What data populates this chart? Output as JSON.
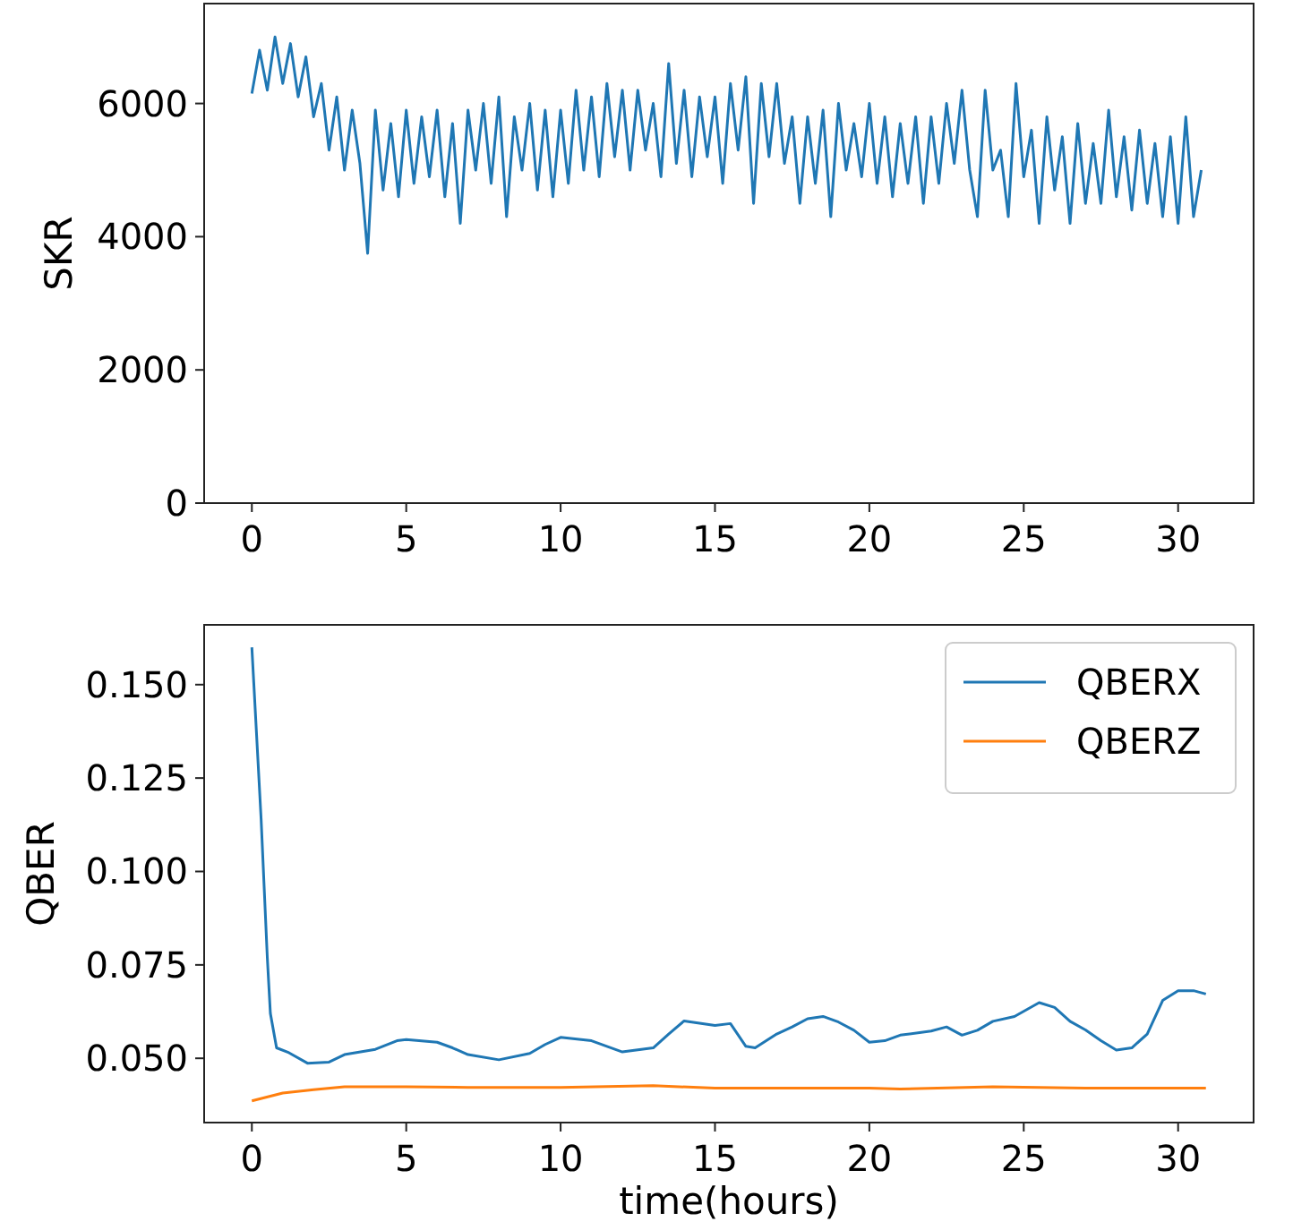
{
  "chart_data": [
    {
      "type": "line",
      "ylabel": "SKR",
      "xlim": [
        -1.545,
        32.445
      ],
      "xticks": [
        0,
        5,
        10,
        15,
        20,
        25,
        30
      ],
      "ylim": [
        0,
        7500
      ],
      "yticks": [
        0,
        2000,
        4000,
        6000
      ],
      "x": [
        0,
        0.25,
        0.5,
        0.75,
        1,
        1.25,
        1.5,
        1.75,
        2,
        2.25,
        2.5,
        2.75,
        3,
        3.25,
        3.5,
        3.75,
        4,
        4.25,
        4.5,
        4.75,
        5,
        5.25,
        5.5,
        5.75,
        6,
        6.25,
        6.5,
        6.75,
        7,
        7.25,
        7.5,
        7.75,
        8,
        8.25,
        8.5,
        8.75,
        9,
        9.25,
        9.5,
        9.75,
        10,
        10.25,
        10.5,
        10.75,
        11,
        11.25,
        11.5,
        11.75,
        12,
        12.25,
        12.5,
        12.75,
        13,
        13.25,
        13.5,
        13.75,
        14,
        14.25,
        14.5,
        14.75,
        15,
        15.25,
        15.5,
        15.75,
        16,
        16.25,
        16.5,
        16.75,
        17,
        17.25,
        17.5,
        17.75,
        18,
        18.25,
        18.5,
        18.75,
        19,
        19.25,
        19.5,
        19.75,
        20,
        20.25,
        20.5,
        20.75,
        21,
        21.25,
        21.5,
        21.75,
        22,
        22.25,
        22.5,
        22.75,
        23,
        23.25,
        23.5,
        23.75,
        24,
        24.25,
        24.5,
        24.75,
        25,
        25.25,
        25.5,
        25.75,
        26,
        26.25,
        26.5,
        26.75,
        27,
        27.25,
        27.5,
        27.75,
        28,
        28.25,
        28.5,
        28.75,
        29,
        29.25,
        29.5,
        29.75,
        30,
        30.25,
        30.5,
        30.75
      ],
      "series": [
        {
          "color": "#1f77b4",
          "values": [
            6150,
            6800,
            6200,
            7000,
            6300,
            6900,
            6100,
            6700,
            5800,
            6300,
            5300,
            6100,
            5000,
            5900,
            5100,
            3750,
            5900,
            4700,
            5700,
            4600,
            5900,
            4800,
            5800,
            4900,
            5900,
            4600,
            5700,
            4200,
            5900,
            5000,
            6000,
            4800,
            6100,
            4300,
            5800,
            5000,
            6000,
            4700,
            5900,
            4600,
            5900,
            4800,
            6200,
            5000,
            6100,
            4900,
            6300,
            5200,
            6200,
            5000,
            6200,
            5300,
            6000,
            4900,
            6600,
            5100,
            6200,
            4900,
            6100,
            5200,
            6100,
            4800,
            6300,
            5300,
            6400,
            4500,
            6300,
            5200,
            6300,
            5100,
            5800,
            4500,
            5800,
            4800,
            5900,
            4300,
            6000,
            5000,
            5700,
            4900,
            6000,
            4800,
            5800,
            4600,
            5700,
            4800,
            5800,
            4500,
            5800,
            4800,
            6000,
            5100,
            6200,
            5000,
            4300,
            6200,
            5000,
            5300,
            4300,
            6300,
            4900,
            5600,
            4200,
            5800,
            4700,
            5500,
            4200,
            5700,
            4500,
            5400,
            4500,
            5900,
            4600,
            5500,
            4400,
            5600,
            4500,
            5400,
            4300,
            5500,
            4200,
            5800,
            4300,
            5000
          ]
        }
      ]
    },
    {
      "type": "line",
      "xlabel": "time(hours)",
      "ylabel": "QBER",
      "xlim": [
        -1.545,
        32.445
      ],
      "xticks": [
        0,
        5,
        10,
        15,
        20,
        25,
        30
      ],
      "ylim": [
        0.0328,
        0.166
      ],
      "yticks": [
        {
          "value": 0.05,
          "label": "0.050"
        },
        {
          "value": 0.075,
          "label": "0.075"
        },
        {
          "value": 0.1,
          "label": "0.100"
        },
        {
          "value": 0.125,
          "label": "0.125"
        },
        {
          "value": 0.15,
          "label": "0.150"
        }
      ],
      "legend": "top right",
      "series": [
        {
          "name": "QBERX",
          "color": "#1f77b4",
          "x": [
            0,
            0.3,
            0.5,
            0.6,
            0.8,
            1.2,
            1.8,
            2.5,
            3,
            4,
            4.7,
            5,
            6,
            6.5,
            7,
            8,
            9,
            9.5,
            10,
            11,
            12,
            13,
            13.5,
            14,
            15,
            15.5,
            16,
            16.3,
            17,
            17.5,
            18,
            18.5,
            19,
            19.5,
            20,
            20.5,
            21,
            22,
            22.5,
            23,
            23.5,
            24,
            24.7,
            25.5,
            26,
            26.5,
            27,
            27.5,
            28,
            28.5,
            29,
            29.5,
            30,
            30.5,
            30.9
          ],
          "values": [
            0.16,
            0.114,
            0.077,
            0.062,
            0.0528,
            0.0515,
            0.0487,
            0.049,
            0.051,
            0.0524,
            0.0547,
            0.055,
            0.0543,
            0.0528,
            0.051,
            0.0496,
            0.0513,
            0.0537,
            0.0556,
            0.0547,
            0.0517,
            0.0528,
            0.0565,
            0.06,
            0.0588,
            0.0593,
            0.0532,
            0.0528,
            0.0565,
            0.0584,
            0.0606,
            0.0612,
            0.0597,
            0.0575,
            0.0543,
            0.0547,
            0.0562,
            0.0573,
            0.0584,
            0.0562,
            0.0575,
            0.0599,
            0.0612,
            0.0649,
            0.0636,
            0.0599,
            0.0576,
            0.0547,
            0.0522,
            0.0528,
            0.0565,
            0.0655,
            0.0681,
            0.0681,
            0.0672
          ]
        },
        {
          "name": "QBERZ",
          "color": "#ff7f0e",
          "x": [
            0,
            1,
            2,
            3,
            5,
            7,
            10,
            13,
            15,
            20,
            21,
            24,
            27,
            30.9
          ],
          "values": [
            0.0386,
            0.0407,
            0.0416,
            0.0424,
            0.0424,
            0.0422,
            0.0422,
            0.0427,
            0.042,
            0.042,
            0.0418,
            0.0424,
            0.042,
            0.042
          ]
        }
      ]
    }
  ]
}
